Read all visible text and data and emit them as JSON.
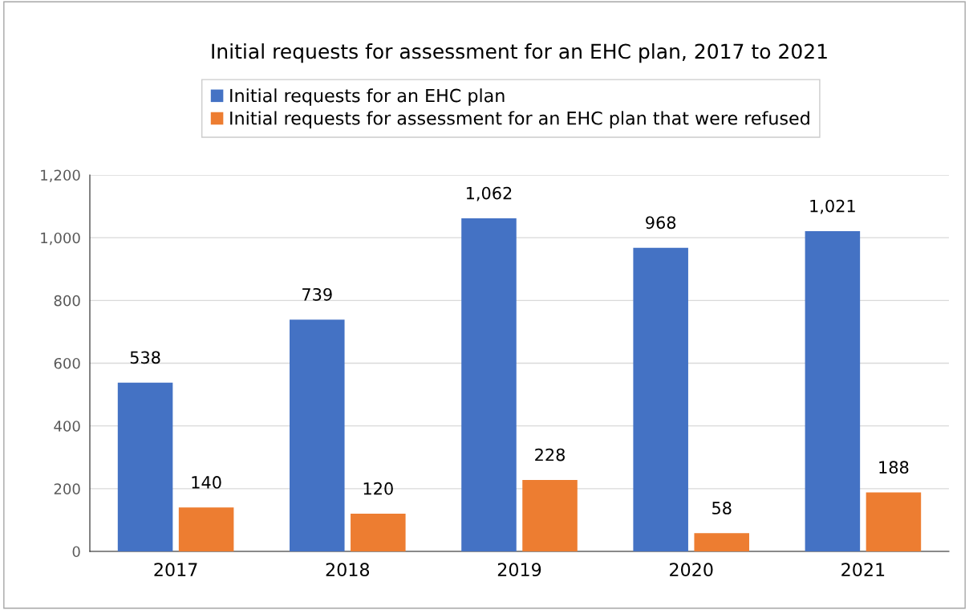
{
  "chart_data": {
    "type": "bar",
    "title": "Initial requests for assessment for an EHC plan, 2017 to 2021",
    "categories": [
      "2017",
      "2018",
      "2019",
      "2020",
      "2021"
    ],
    "series": [
      {
        "name": "Initial requests for an EHC plan",
        "color": "#4472c4",
        "values": [
          538,
          739,
          1062,
          968,
          1021
        ],
        "value_labels": [
          "538",
          "739",
          "1,062",
          "968",
          "1,021"
        ]
      },
      {
        "name": "Initial requests for assessment for an EHC plan that were refused",
        "color": "#ed7d31",
        "values": [
          140,
          120,
          228,
          58,
          188
        ],
        "value_labels": [
          "140",
          "120",
          "228",
          "58",
          "188"
        ]
      }
    ],
    "ylim": [
      0,
      1200
    ],
    "yticks": [
      0,
      200,
      400,
      600,
      800,
      {
        "value": 1000,
        "label": "1,000"
      },
      {
        "value": 1200,
        "label": "1,200"
      }
    ],
    "grid": "y",
    "legend": "top"
  }
}
